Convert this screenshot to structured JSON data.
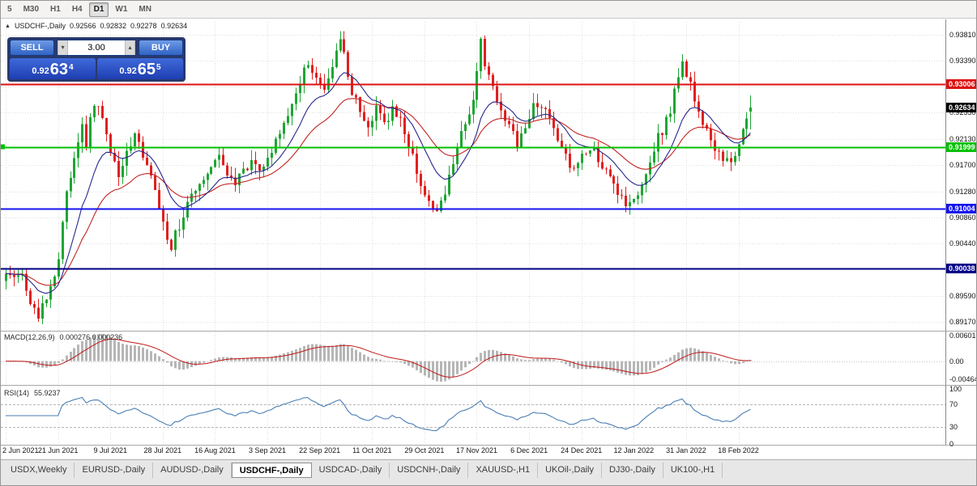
{
  "toolbar": {
    "timeframes": [
      "5",
      "M30",
      "H1",
      "H4",
      "D1",
      "W1",
      "MN"
    ],
    "active": "D1"
  },
  "chart_header": {
    "collapse_icon": "▲",
    "title": "USDCHF-,Daily",
    "open": "0.92566",
    "high": "0.92832",
    "low": "0.92278",
    "close": "0.92634"
  },
  "trade_panel": {
    "sell_label": "SELL",
    "buy_label": "BUY",
    "volume": "3.00",
    "spinner_down_icon": "▾",
    "spinner_up_icon": "▴",
    "sell_price_prefix": "0.92",
    "sell_price_big": "63",
    "sell_price_sup": "4",
    "buy_price_prefix": "0.92",
    "buy_price_big": "65",
    "buy_price_sup": "5"
  },
  "chart_data": [
    {
      "type": "candlestick",
      "symbol": "USDCHF-",
      "timeframe": "Daily",
      "num_candles": 186,
      "candles_per_label": 13,
      "x_labels": [
        "2 Jun 2021",
        "21 Jun 2021",
        "9 Jul 2021",
        "28 Jul 2021",
        "16 Aug 2021",
        "3 Sep 2021",
        "22 Sep 2021",
        "11 Oct 2021",
        "29 Oct 2021",
        "17 Nov 2021",
        "6 Dec 2021",
        "24 Dec 2021",
        "12 Jan 2022",
        "31 Jan 2022",
        "18 Feb 2022"
      ],
      "y_axis": {
        "min": 0.89052,
        "max": 0.94019,
        "tick_labels": [
          "0.93810",
          "0.93390",
          "0.92970",
          "0.92550",
          "0.92130",
          "0.91700",
          "0.91280",
          "0.90860",
          "0.90440",
          "0.90020",
          "0.89590",
          "0.89170"
        ]
      },
      "last_candle": {
        "open": 0.92566,
        "high": 0.92832,
        "low": 0.92278,
        "close": 0.92634
      },
      "current_price": {
        "label": "0.92634",
        "value": 0.92634,
        "color": "#000000"
      },
      "hlines": [
        {
          "label": "0.93006",
          "price": 0.93006,
          "color": "#dd1111",
          "width": 2
        },
        {
          "label": "0.91999",
          "price": 0.91999,
          "color": "#00c000",
          "width": 2
        },
        {
          "label": "0.91004",
          "price": 0.91004,
          "color": "#1414ee",
          "width": 2
        },
        {
          "label": "0.90038",
          "price": 0.90038,
          "color": "#000085",
          "width": 2
        }
      ],
      "colors": {
        "bull": "#1fa534",
        "bear": "#e02020",
        "ma_fast": "#26268c",
        "ma_slow": "#c22424",
        "grid": "#e0e0e0"
      },
      "price_path": [
        [
          0,
          0.9002
        ],
        [
          2,
          0.8987
        ],
        [
          4,
          0.8993
        ],
        [
          6,
          0.8952
        ],
        [
          8,
          0.8928
        ],
        [
          10,
          0.8958
        ],
        [
          12,
          0.8988
        ],
        [
          13,
          0.9025
        ],
        [
          15,
          0.9125
        ],
        [
          17,
          0.9188
        ],
        [
          19,
          0.9232
        ],
        [
          20,
          0.9208
        ],
        [
          22,
          0.9272
        ],
        [
          24,
          0.9248
        ],
        [
          26,
          0.9195
        ],
        [
          28,
          0.9152
        ],
        [
          30,
          0.92
        ],
        [
          32,
          0.9215
        ],
        [
          34,
          0.9185
        ],
        [
          36,
          0.9158
        ],
        [
          38,
          0.9105
        ],
        [
          40,
          0.9058
        ],
        [
          41,
          0.904
        ],
        [
          43,
          0.9072
        ],
        [
          45,
          0.9112
        ],
        [
          47,
          0.9122
        ],
        [
          49,
          0.9152
        ],
        [
          51,
          0.9168
        ],
        [
          53,
          0.9178
        ],
        [
          55,
          0.9158
        ],
        [
          57,
          0.914
        ],
        [
          59,
          0.9163
        ],
        [
          61,
          0.9178
        ],
        [
          63,
          0.9168
        ],
        [
          65,
          0.9185
        ],
        [
          67,
          0.9212
        ],
        [
          69,
          0.9242
        ],
        [
          71,
          0.9268
        ],
        [
          73,
          0.9305
        ],
        [
          75,
          0.9338
        ],
        [
          77,
          0.9312
        ],
        [
          79,
          0.9288
        ],
        [
          81,
          0.9328
        ],
        [
          83,
          0.9368
        ],
        [
          84,
          0.9348
        ],
        [
          86,
          0.9292
        ],
        [
          88,
          0.9252
        ],
        [
          90,
          0.9232
        ],
        [
          92,
          0.9258
        ],
        [
          94,
          0.9236
        ],
        [
          96,
          0.9265
        ],
        [
          98,
          0.9242
        ],
        [
          100,
          0.9202
        ],
        [
          102,
          0.9162
        ],
        [
          104,
          0.9122
        ],
        [
          106,
          0.9092
        ],
        [
          108,
          0.9108
        ],
        [
          110,
          0.9148
        ],
        [
          112,
          0.9205
        ],
        [
          114,
          0.9242
        ],
        [
          116,
          0.9278
        ],
        [
          117,
          0.9325
        ],
        [
          118,
          0.9368
        ],
        [
          119,
          0.9338
        ],
        [
          121,
          0.9292
        ],
        [
          123,
          0.9252
        ],
        [
          125,
          0.9235
        ],
        [
          127,
          0.9202
        ],
        [
          129,
          0.9228
        ],
        [
          131,
          0.9262
        ],
        [
          133,
          0.9268
        ],
        [
          135,
          0.9245
        ],
        [
          137,
          0.9215
        ],
        [
          139,
          0.9182
        ],
        [
          141,
          0.9166
        ],
        [
          143,
          0.9186
        ],
        [
          145,
          0.92
        ],
        [
          147,
          0.9182
        ],
        [
          149,
          0.916
        ],
        [
          151,
          0.9132
        ],
        [
          153,
          0.9112
        ],
        [
          155,
          0.9102
        ],
        [
          157,
          0.913
        ],
        [
          159,
          0.9162
        ],
        [
          161,
          0.92
        ],
        [
          163,
          0.9226
        ],
        [
          165,
          0.9258
        ],
        [
          167,
          0.9318
        ],
        [
          168,
          0.9334
        ],
        [
          170,
          0.93
        ],
        [
          172,
          0.9262
        ],
        [
          174,
          0.9222
        ],
        [
          176,
          0.92
        ],
        [
          178,
          0.9186
        ],
        [
          180,
          0.9172
        ],
        [
          182,
          0.9212
        ],
        [
          184,
          0.9248
        ],
        [
          185,
          0.9263
        ]
      ]
    },
    {
      "type": "macd",
      "label": "MACD(12,26,9)",
      "values_text": "0.000276 0.000236",
      "fast": 12,
      "slow": 26,
      "signal_period": 9,
      "y_axis": {
        "max": 0.00601,
        "min": -0.00464,
        "tick_labels": [
          "0.00601",
          "0.00",
          "-0.00464"
        ]
      },
      "colors": {
        "histogram": "#b6b6b6",
        "signal": "#c01818"
      }
    },
    {
      "type": "rsi",
      "label": "RSI(14)",
      "value_text": "55.9237",
      "period": 14,
      "levels": [
        70,
        30
      ],
      "y_axis": {
        "min": 0,
        "max": 100,
        "tick_labels": [
          "100",
          "70",
          "30",
          "0"
        ]
      },
      "colors": {
        "line": "#4a7eb5",
        "level": "#b8b8b8"
      }
    }
  ],
  "tabs": {
    "items": [
      "USDX,Weekly",
      "EURUSD-,Daily",
      "AUDUSD-,Daily",
      "USDCHF-,Daily",
      "USDCAD-,Daily",
      "USDCNH-,Daily",
      "XAUUSD-,H1",
      "UKOil-,Daily",
      "DJ30-,Daily",
      "UK100-,H1"
    ],
    "active": "USDCHF-,Daily"
  }
}
